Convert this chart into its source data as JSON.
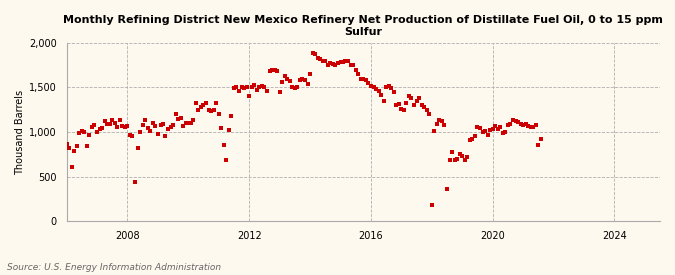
{
  "title": "Monthly Refining District New Mexico Refinery Net Production of Distillate Fuel Oil, 0 to 15 ppm\nSulfur",
  "ylabel": "Thousand Barrels",
  "source": "Source: U.S. Energy Information Administration",
  "background_color": "#fef9ee",
  "plot_background_color": "#fef9ee",
  "marker_color": "#cc0000",
  "ylim": [
    0,
    2000
  ],
  "yticks": [
    0,
    500,
    1000,
    1500,
    2000
  ],
  "ytick_labels": [
    "0",
    "500",
    "1,000",
    "1,500",
    "2,000"
  ],
  "values": [
    860,
    820,
    610,
    790,
    840,
    990,
    1010,
    1000,
    840,
    970,
    1060,
    1080,
    1000,
    1030,
    1050,
    1120,
    1090,
    1090,
    1130,
    1100,
    1060,
    1130,
    1070,
    1060,
    1070,
    970,
    950,
    440,
    820,
    1000,
    1080,
    1130,
    1050,
    1010,
    1100,
    1070,
    980,
    1080,
    1090,
    960,
    1030,
    1060,
    1080,
    1200,
    1150,
    1160,
    1070,
    1100,
    1100,
    1100,
    1130,
    1320,
    1250,
    1280,
    1300,
    1330,
    1250,
    1230,
    1250,
    1330,
    1200,
    1050,
    850,
    680,
    1020,
    1180,
    1490,
    1510,
    1460,
    1500,
    1490,
    1510,
    1400,
    1510,
    1530,
    1470,
    1510,
    1520,
    1500,
    1460,
    1680,
    1700,
    1700,
    1690,
    1450,
    1560,
    1630,
    1600,
    1570,
    1500,
    1490,
    1500,
    1580,
    1600,
    1580,
    1540,
    1650,
    1890,
    1880,
    1830,
    1820,
    1800,
    1800,
    1750,
    1780,
    1760,
    1750,
    1780,
    1790,
    1790,
    1800,
    1800,
    1750,
    1750,
    1700,
    1650,
    1600,
    1590,
    1580,
    1550,
    1520,
    1500,
    1480,
    1460,
    1420,
    1350,
    1500,
    1520,
    1490,
    1450,
    1300,
    1310,
    1260,
    1250,
    1320,
    1400,
    1380,
    1300,
    1350,
    1380,
    1300,
    1280,
    1250,
    1200,
    180,
    1010,
    1090,
    1130,
    1120,
    1080,
    360,
    690,
    780,
    680,
    700,
    750,
    730,
    690,
    720,
    910,
    920,
    960,
    1060,
    1050,
    1000,
    1010,
    970,
    1020,
    1030,
    1070,
    1030,
    1060,
    990,
    1000,
    1080,
    1090,
    1130,
    1120,
    1110,
    1090,
    1080,
    1090,
    1070,
    1060,
    1060,
    1080,
    850,
    920
  ]
}
